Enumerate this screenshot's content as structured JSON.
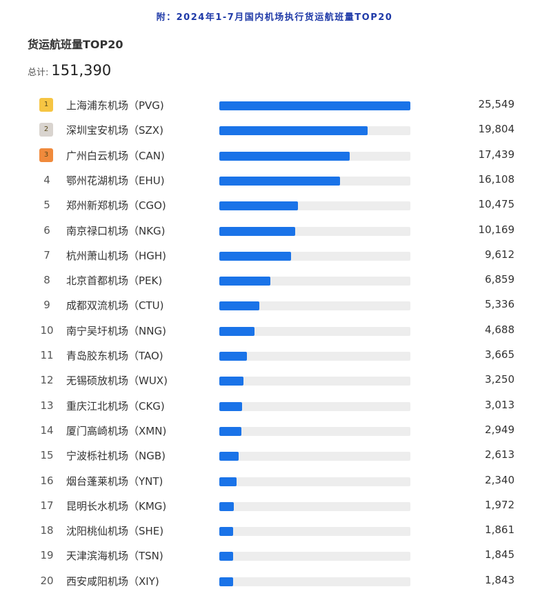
{
  "header": {
    "title": "附：2024年1-7月国内机场执行货运航班量TOP20"
  },
  "chart": {
    "title": "货运航班量TOP20",
    "total_label": "总计:",
    "total_value": "151,390"
  },
  "colors": {
    "bar": "#1a73e8",
    "track": "#ededed",
    "rank1": "#f6c543",
    "rank2": "#d9d4cf",
    "rank3": "#f08a3c",
    "header_text": "#1f3aa8"
  },
  "chart_data": {
    "type": "bar",
    "orientation": "horizontal",
    "title": "货运航班量TOP20",
    "xlim": [
      0,
      25549
    ],
    "categories": [
      "上海浦东机场（PVG)",
      "深圳宝安机场（SZX)",
      "广州白云机场（CAN)",
      "鄂州花湖机场（EHU)",
      "郑州新郑机场（CGO)",
      "南京禄口机场（NKG)",
      "杭州萧山机场（HGH)",
      "北京首都机场（PEK)",
      "成都双流机场（CTU)",
      "南宁吴圩机场（NNG)",
      "青岛胶东机场（TAO)",
      "无锡硕放机场（WUX)",
      "重庆江北机场（CKG)",
      "厦门高崎机场（XMN)",
      "宁波栎社机场（NGB)",
      "烟台蓬莱机场（YNT)",
      "昆明长水机场（KMG)",
      "沈阳桃仙机场（SHE)",
      "天津滨海机场（TSN)",
      "西安咸阳机场（XIY)"
    ],
    "ranks": [
      "1",
      "2",
      "3",
      "4",
      "5",
      "6",
      "7",
      "8",
      "9",
      "10",
      "11",
      "12",
      "13",
      "14",
      "15",
      "16",
      "17",
      "18",
      "19",
      "20"
    ],
    "values": [
      25549,
      19804,
      17439,
      16108,
      10475,
      10169,
      9612,
      6859,
      5336,
      4688,
      3665,
      3250,
      3013,
      2949,
      2613,
      2340,
      1972,
      1861,
      1845,
      1843
    ],
    "value_labels": [
      "25,549",
      "19,804",
      "17,439",
      "16,108",
      "10,475",
      "10,169",
      "9,612",
      "6,859",
      "5,336",
      "4,688",
      "3,665",
      "3,250",
      "3,013",
      "2,949",
      "2,613",
      "2,340",
      "1,972",
      "1,861",
      "1,845",
      "1,843"
    ]
  }
}
